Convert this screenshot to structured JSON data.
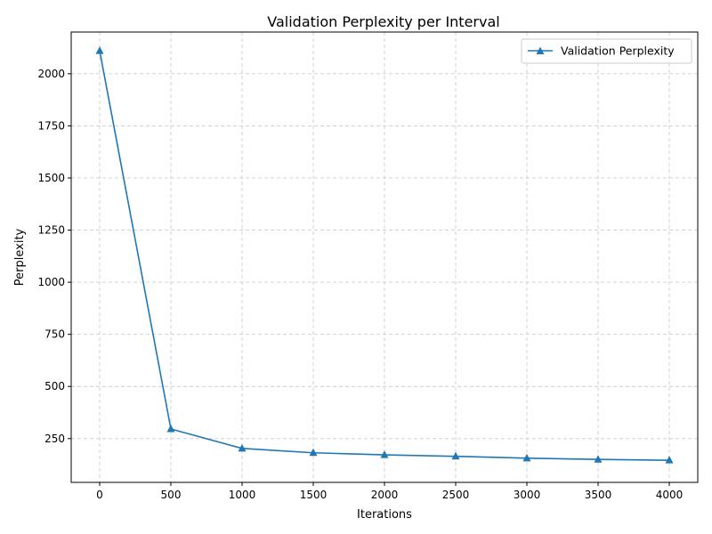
{
  "chart_data": {
    "type": "line",
    "title": "Validation Perplexity per Interval",
    "xlabel": "Iterations",
    "ylabel": "Perplexity",
    "xlim": [
      -200,
      4200
    ],
    "ylim": [
      40,
      2200
    ],
    "xticks": [
      0,
      500,
      1000,
      1500,
      2000,
      2500,
      3000,
      3500,
      4000
    ],
    "yticks": [
      250,
      500,
      750,
      1000,
      1250,
      1500,
      1750,
      2000
    ],
    "grid": true,
    "legend_position": "top-right",
    "series": [
      {
        "name": "Validation Perplexity",
        "color": "#1f77b4",
        "marker": "triangle-up",
        "x": [
          0,
          500,
          1000,
          1500,
          2000,
          2500,
          3000,
          3500,
          4000
        ],
        "y": [
          2110,
          296,
          203,
          182,
          172,
          165,
          156,
          150,
          146
        ]
      }
    ]
  }
}
